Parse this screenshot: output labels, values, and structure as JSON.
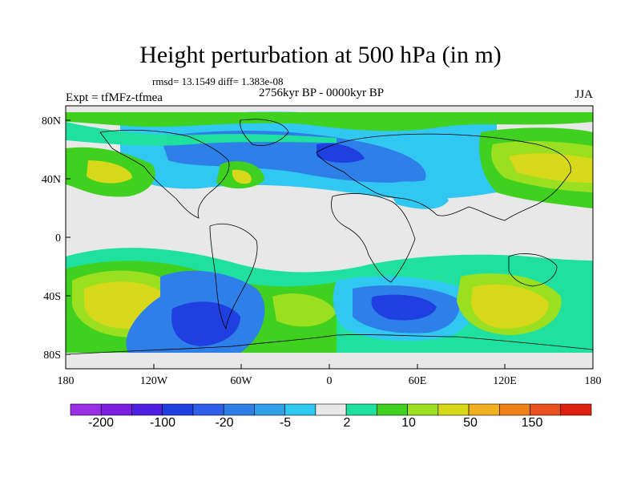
{
  "title": "Height perturbation at 500 hPa (in m)",
  "stats": "rmsd= 13.1549 diff= 1.383e-08",
  "period": "2756kyr BP - 0000kyr BP",
  "experiment": "Expt = tfMFz-tfmea",
  "season": "JJA",
  "lat_ticks": [
    "80N",
    "40N",
    "0",
    "40S",
    "80S"
  ],
  "lon_ticks": [
    "180",
    "120W",
    "60W",
    "0",
    "60E",
    "120E",
    "180"
  ],
  "colorbar": {
    "colors": [
      "#9a2fe6",
      "#7a1fe0",
      "#4f1ee0",
      "#1f3fe0",
      "#2f5fe8",
      "#2f7fe8",
      "#2fa0e8",
      "#30c8f0",
      "#e8e8e8",
      "#20e0a0",
      "#40d020",
      "#9ae020",
      "#d8d81a",
      "#f0b020",
      "#f08018",
      "#e85020",
      "#e02010"
    ],
    "labels": [
      "-200",
      "-100",
      "-20",
      "-5",
      "2",
      "10",
      "50",
      "150"
    ]
  }
}
